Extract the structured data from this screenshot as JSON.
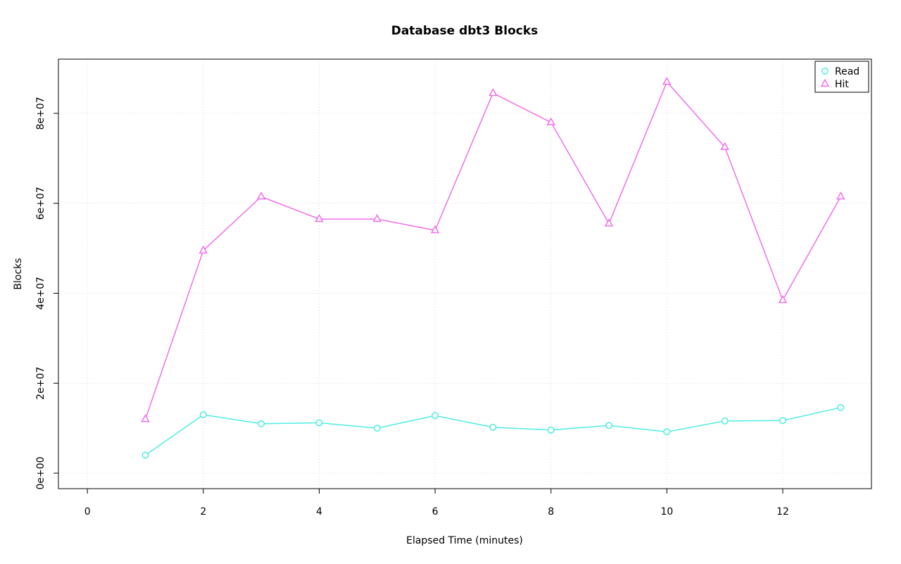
{
  "chart_data": {
    "type": "line",
    "title": "Database dbt3 Blocks",
    "xlabel": "Elapsed Time (minutes)",
    "ylabel": "Blocks",
    "x": [
      1,
      2,
      3,
      4,
      5,
      6,
      7,
      8,
      9,
      10,
      11,
      12,
      13
    ],
    "series": [
      {
        "name": "Read",
        "marker": "circle",
        "color": "#4DEDE3",
        "values": [
          4000000,
          13000000,
          11000000,
          11200000,
          10000000,
          12800000,
          10200000,
          9600000,
          10600000,
          9200000,
          11600000,
          11700000,
          14600000
        ]
      },
      {
        "name": "Hit",
        "marker": "triangle",
        "color": "#F06FEC",
        "values": [
          12000000,
          49500000,
          61500000,
          56500000,
          56500000,
          54000000,
          84500000,
          78000000,
          55500000,
          87000000,
          72500000,
          38500000,
          61500000
        ]
      }
    ],
    "x_ticks": [
      0,
      2,
      4,
      6,
      8,
      10,
      12
    ],
    "x_tick_labels": [
      "0",
      "2",
      "4",
      "6",
      "8",
      "10",
      "12"
    ],
    "y_ticks": [
      0,
      20000000,
      40000000,
      60000000,
      80000000
    ],
    "y_tick_labels": [
      "0e+00",
      "2e+07",
      "4e+07",
      "6e+07",
      "8e+07"
    ],
    "xlim": [
      -0.5,
      13.53
    ],
    "ylim": [
      -3440000,
      92050000
    ],
    "grid": true,
    "colors": {
      "grid": "#D9D9D9",
      "axis": "#000000",
      "background": "#FFFFFF"
    },
    "legend": {
      "position": "top-right",
      "items": [
        "Read",
        "Hit"
      ]
    }
  }
}
